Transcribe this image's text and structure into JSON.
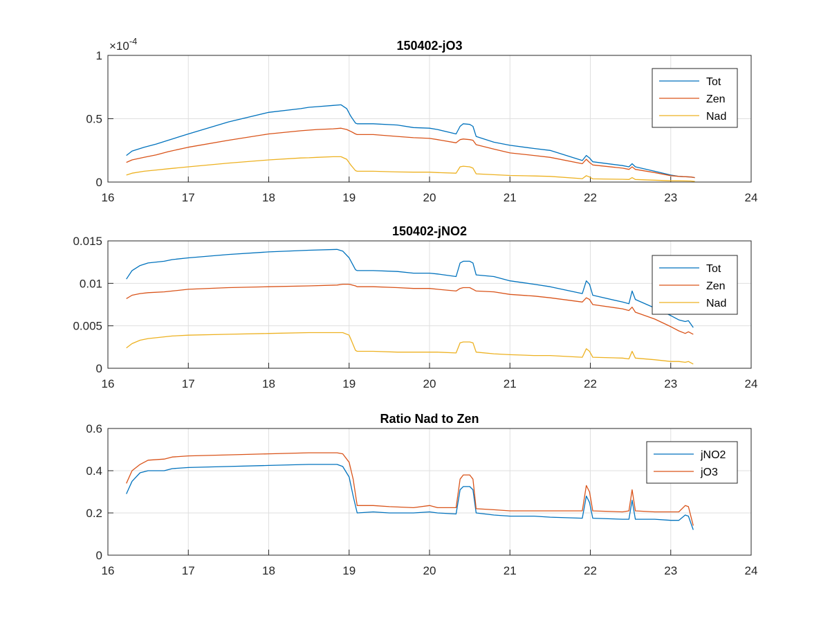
{
  "colors": {
    "series_blue": "#0072BD",
    "series_orange": "#D95319",
    "series_yellow": "#EDB120",
    "grid": "#dfdfdf",
    "axis": "#262626"
  },
  "chart_data": [
    {
      "type": "line",
      "title": "150402-jO3",
      "xlabel": "",
      "ylabel": "",
      "xlim": [
        16,
        24
      ],
      "ylim": [
        0,
        0.0001
      ],
      "y_exponent_label": {
        "base": "×10",
        "exp": "-4"
      },
      "x_tick_labels": [
        "16",
        "17",
        "18",
        "19",
        "20",
        "21",
        "22",
        "23",
        "24"
      ],
      "y_tick_labels": [
        "0",
        "0.5",
        "1"
      ],
      "grid": true,
      "legend": "top-right",
      "x": [
        16.23,
        16.3,
        16.45,
        16.6,
        16.75,
        17.0,
        17.5,
        18.0,
        18.4,
        18.5,
        18.6,
        18.8,
        18.9,
        18.97,
        19.02,
        19.08,
        19.1,
        19.3,
        19.6,
        19.8,
        20.0,
        20.1,
        20.33,
        20.38,
        20.42,
        20.5,
        20.54,
        20.58,
        20.8,
        21.0,
        21.3,
        21.5,
        21.9,
        21.95,
        21.99,
        22.03,
        22.4,
        22.48,
        22.52,
        22.56,
        22.8,
        23.0,
        23.1,
        23.25,
        23.3
      ],
      "series": [
        {
          "name": "Tot",
          "values": [
            2.1e-05,
            2.45e-05,
            2.75e-05,
            3e-05,
            3.3e-05,
            3.8e-05,
            4.75e-05,
            5.5e-05,
            5.8e-05,
            5.9e-05,
            5.95e-05,
            6.05e-05,
            6.1e-05,
            5.8e-05,
            5.2e-05,
            4.65e-05,
            4.6e-05,
            4.6e-05,
            4.5e-05,
            4.3e-05,
            4.25e-05,
            4.15e-05,
            3.8e-05,
            4.4e-05,
            4.6e-05,
            4.55e-05,
            4.4e-05,
            3.6e-05,
            3.15e-05,
            2.9e-05,
            2.65e-05,
            2.5e-05,
            1.7e-05,
            2.1e-05,
            1.9e-05,
            1.6e-05,
            1.3e-05,
            1.2e-05,
            1.45e-05,
            1.2e-05,
            8.5e-06,
            5.5e-06,
            4.5e-06,
            4e-06,
            3.5e-06
          ]
        },
        {
          "name": "Zen",
          "values": [
            1.55e-05,
            1.75e-05,
            1.95e-05,
            2.15e-05,
            2.4e-05,
            2.75e-05,
            3.3e-05,
            3.8e-05,
            4.05e-05,
            4.1e-05,
            4.15e-05,
            4.2e-05,
            4.25e-05,
            4.15e-05,
            4e-05,
            3.8e-05,
            3.75e-05,
            3.75e-05,
            3.6e-05,
            3.5e-05,
            3.45e-05,
            3.35e-05,
            3.1e-05,
            3.35e-05,
            3.4e-05,
            3.35e-05,
            3.3e-05,
            2.95e-05,
            2.6e-05,
            2.3e-05,
            2.1e-05,
            1.95e-05,
            1.45e-05,
            1.8e-05,
            1.55e-05,
            1.35e-05,
            1.1e-05,
            1e-05,
            1.2e-05,
            1e-05,
            7.5e-06,
            5e-06,
            4.5e-06,
            4e-06,
            3.5e-06
          ]
        },
        {
          "name": "Nad",
          "values": [
            5.5e-06,
            7e-06,
            8.5e-06,
            9.5e-06,
            1.05e-05,
            1.2e-05,
            1.5e-05,
            1.75e-05,
            1.9e-05,
            1.92e-05,
            1.95e-05,
            2e-05,
            2e-05,
            1.8e-05,
            1.35e-05,
            9e-06,
            8.5e-06,
            8.5e-06,
            8e-06,
            7.8e-06,
            7.8e-06,
            7.5e-06,
            7e-06,
            1.2e-05,
            1.25e-05,
            1.2e-05,
            1.1e-05,
            6.5e-06,
            5.8e-06,
            5.2e-06,
            4.8e-06,
            4.5e-06,
            2.7e-06,
            5e-06,
            4e-06,
            2.5e-06,
            2.2e-06,
            2e-06,
            3.5e-06,
            2e-06,
            1.5e-06,
            1e-06,
            1e-06,
            8e-07,
            5e-07
          ]
        }
      ]
    },
    {
      "type": "line",
      "title": "150402-jNO2",
      "xlabel": "",
      "ylabel": "",
      "xlim": [
        16,
        24
      ],
      "ylim": [
        0,
        0.015
      ],
      "x_tick_labels": [
        "16",
        "17",
        "18",
        "19",
        "20",
        "21",
        "22",
        "23",
        "24"
      ],
      "y_tick_labels": [
        "0",
        "0.005",
        "0.01",
        "0.015"
      ],
      "grid": true,
      "legend": "right",
      "x": [
        16.23,
        16.3,
        16.4,
        16.5,
        16.7,
        16.8,
        17.0,
        17.5,
        18.0,
        18.5,
        18.85,
        18.92,
        19.0,
        19.08,
        19.1,
        19.3,
        19.6,
        19.8,
        20.0,
        20.1,
        20.33,
        20.38,
        20.42,
        20.5,
        20.54,
        20.58,
        20.8,
        21.0,
        21.3,
        21.5,
        21.9,
        21.95,
        21.99,
        22.03,
        22.4,
        22.48,
        22.52,
        22.56,
        22.8,
        23.0,
        23.1,
        23.18,
        23.22,
        23.28
      ],
      "series": [
        {
          "name": "Tot",
          "values": [
            0.0105,
            0.0115,
            0.0121,
            0.0124,
            0.0126,
            0.0128,
            0.013,
            0.0134,
            0.0137,
            0.0139,
            0.014,
            0.0138,
            0.013,
            0.0116,
            0.0115,
            0.0115,
            0.0114,
            0.0112,
            0.0112,
            0.0111,
            0.0108,
            0.0124,
            0.0126,
            0.0126,
            0.0124,
            0.011,
            0.0108,
            0.0103,
            0.0099,
            0.0096,
            0.0088,
            0.0103,
            0.0099,
            0.0086,
            0.0078,
            0.0076,
            0.0091,
            0.0081,
            0.0071,
            0.0062,
            0.0057,
            0.0055,
            0.0056,
            0.0048
          ]
        },
        {
          "name": "Zen",
          "values": [
            0.0082,
            0.0086,
            0.0088,
            0.0089,
            0.009,
            0.0091,
            0.0093,
            0.0095,
            0.0096,
            0.0097,
            0.0098,
            0.0099,
            0.0099,
            0.0097,
            0.0096,
            0.0096,
            0.0095,
            0.0094,
            0.0094,
            0.0093,
            0.0091,
            0.0094,
            0.0095,
            0.0095,
            0.0093,
            0.0091,
            0.009,
            0.0087,
            0.0085,
            0.0083,
            0.0078,
            0.0083,
            0.0081,
            0.0075,
            0.007,
            0.0068,
            0.0072,
            0.0066,
            0.0058,
            0.0049,
            0.0044,
            0.0041,
            0.0043,
            0.004
          ]
        },
        {
          "name": "Nad",
          "values": [
            0.0024,
            0.0029,
            0.0033,
            0.0035,
            0.0037,
            0.0038,
            0.0039,
            0.004,
            0.0041,
            0.0042,
            0.0042,
            0.0042,
            0.0039,
            0.0021,
            0.002,
            0.002,
            0.0019,
            0.0019,
            0.0019,
            0.0019,
            0.0018,
            0.003,
            0.0031,
            0.0031,
            0.003,
            0.0019,
            0.0017,
            0.0016,
            0.0015,
            0.0015,
            0.0013,
            0.0023,
            0.002,
            0.0013,
            0.0012,
            0.0011,
            0.002,
            0.0012,
            0.001,
            0.0008,
            0.0008,
            0.0007,
            0.0008,
            0.0005
          ]
        }
      ]
    },
    {
      "type": "line",
      "title": "Ratio Nad to Zen",
      "xlabel": "",
      "ylabel": "",
      "xlim": [
        16,
        24
      ],
      "ylim": [
        0,
        0.6
      ],
      "x_tick_labels": [
        "16",
        "17",
        "18",
        "19",
        "20",
        "21",
        "22",
        "23",
        "24"
      ],
      "y_tick_labels": [
        "0",
        "0.2",
        "0.4",
        "0.6"
      ],
      "grid": true,
      "legend": "top-right",
      "x": [
        16.23,
        16.3,
        16.4,
        16.5,
        16.7,
        16.8,
        17.0,
        17.5,
        18.0,
        18.5,
        18.85,
        18.92,
        19.0,
        19.05,
        19.1,
        19.3,
        19.5,
        19.8,
        20.0,
        20.1,
        20.33,
        20.38,
        20.42,
        20.5,
        20.54,
        20.58,
        20.8,
        21.0,
        21.3,
        21.5,
        21.9,
        21.95,
        21.99,
        22.03,
        22.4,
        22.48,
        22.52,
        22.56,
        22.8,
        23.0,
        23.1,
        23.18,
        23.22,
        23.28
      ],
      "series": [
        {
          "name": "jNO2",
          "values": [
            0.29,
            0.35,
            0.39,
            0.4,
            0.4,
            0.41,
            0.415,
            0.42,
            0.425,
            0.43,
            0.43,
            0.42,
            0.37,
            0.28,
            0.2,
            0.205,
            0.2,
            0.2,
            0.205,
            0.2,
            0.195,
            0.31,
            0.325,
            0.325,
            0.31,
            0.2,
            0.19,
            0.185,
            0.185,
            0.18,
            0.175,
            0.28,
            0.25,
            0.175,
            0.17,
            0.17,
            0.26,
            0.17,
            0.17,
            0.165,
            0.165,
            0.19,
            0.185,
            0.12
          ]
        },
        {
          "name": "jO3",
          "values": [
            0.34,
            0.4,
            0.43,
            0.45,
            0.455,
            0.465,
            0.47,
            0.475,
            0.48,
            0.485,
            0.485,
            0.48,
            0.44,
            0.36,
            0.235,
            0.235,
            0.23,
            0.225,
            0.235,
            0.225,
            0.225,
            0.36,
            0.38,
            0.38,
            0.36,
            0.22,
            0.215,
            0.21,
            0.21,
            0.21,
            0.21,
            0.33,
            0.3,
            0.21,
            0.205,
            0.21,
            0.31,
            0.21,
            0.205,
            0.205,
            0.205,
            0.235,
            0.23,
            0.14
          ]
        }
      ]
    }
  ]
}
